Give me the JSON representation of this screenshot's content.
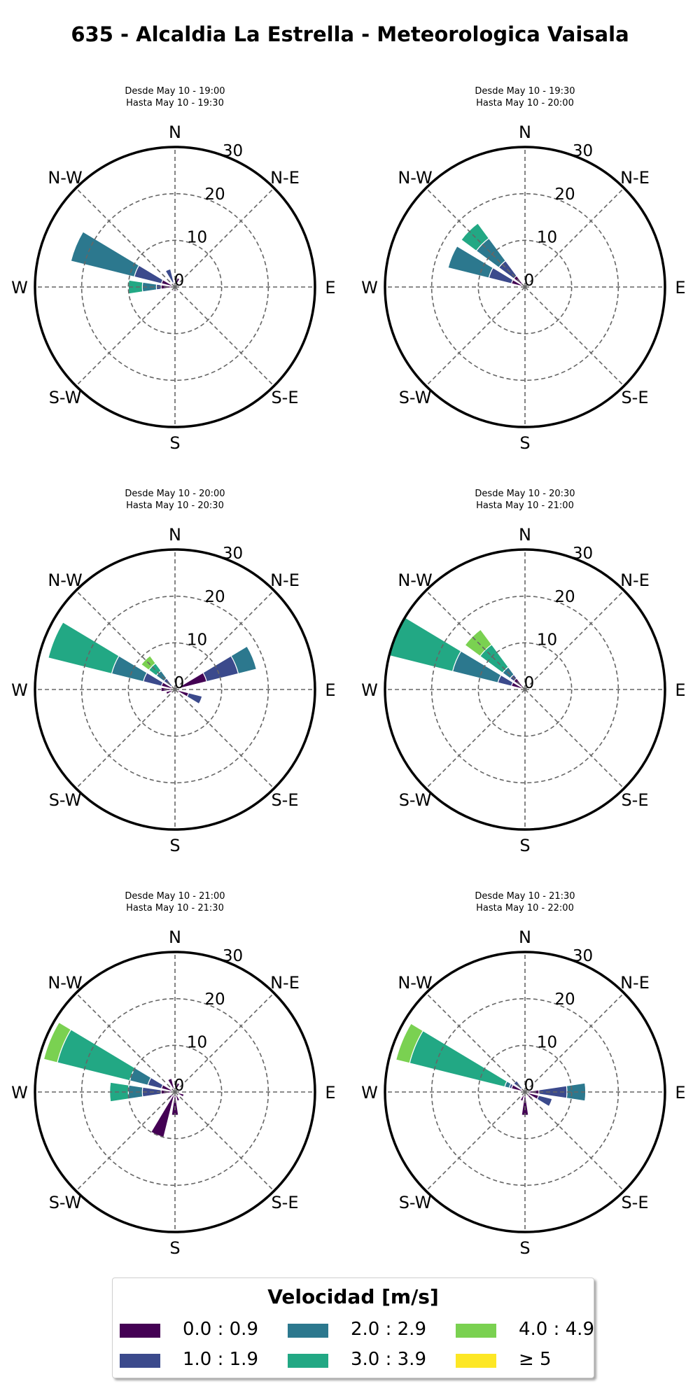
{
  "page": {
    "title": "635 - Alcaldia La Estrella - Meteorologica Vaisala"
  },
  "legend": {
    "title": "Velocidad [m/s]",
    "items": [
      {
        "label": "0.0 : 0.9",
        "color": "#440154"
      },
      {
        "label": "1.0 : 1.9",
        "color": "#3b4a8c"
      },
      {
        "label": "2.0 : 2.9",
        "color": "#2c788e"
      },
      {
        "label": "3.0 : 3.9",
        "color": "#22a884"
      },
      {
        "label": "4.0 : 4.9",
        "color": "#7ad151"
      },
      {
        "label": "≥ 5",
        "color": "#fde725"
      }
    ]
  },
  "chart_data": [
    {
      "type": "windrose",
      "subtitle": [
        "Desde May 10 - 19:00",
        "Hasta May 10 - 19:30"
      ],
      "directions": [
        "N",
        "N-E",
        "E",
        "S-E",
        "S",
        "S-W",
        "W",
        "N-W"
      ],
      "radial_ticks": [
        0,
        10,
        20,
        30
      ],
      "rmax": 30,
      "bars": [
        {
          "dir": 292.5,
          "stacks": [
            3,
            6,
            14
          ]
        },
        {
          "dir": 270,
          "stacks": [
            3,
            1,
            3,
            3
          ]
        },
        {
          "dir": 337.5,
          "stacks": [
            1,
            3
          ]
        },
        {
          "dir": 22.5,
          "stacks": [
            2
          ]
        },
        {
          "dir": 0,
          "stacks": [
            1
          ]
        },
        {
          "dir": 202.5,
          "stacks": [
            1
          ]
        },
        {
          "dir": 157.5,
          "stacks": [
            1
          ]
        }
      ]
    },
    {
      "type": "windrose",
      "subtitle": [
        "Desde May 10 - 19:30",
        "Hasta May 10 - 20:00"
      ],
      "directions": [
        "N",
        "N-E",
        "E",
        "S-E",
        "S",
        "S-W",
        "W",
        "N-W"
      ],
      "radial_ticks": [
        0,
        10,
        20,
        30
      ],
      "rmax": 30,
      "bars": [
        {
          "dir": 292.5,
          "stacks": [
            3,
            5,
            9
          ]
        },
        {
          "dir": 315,
          "stacks": [
            3,
            4,
            6,
            4
          ]
        }
      ]
    },
    {
      "type": "windrose",
      "subtitle": [
        "Desde May 10 - 20:00",
        "Hasta May 10 - 20:30"
      ],
      "directions": [
        "N",
        "N-E",
        "E",
        "S-E",
        "S",
        "S-W",
        "W",
        "N-W"
      ],
      "radial_ticks": [
        0,
        10,
        20,
        30
      ],
      "rmax": 30,
      "bars": [
        {
          "dir": 292.5,
          "stacks": [
            3,
            4,
            7,
            14
          ]
        },
        {
          "dir": 315,
          "stacks": [
            1,
            2,
            2,
            2,
            2
          ]
        },
        {
          "dir": 67.5,
          "stacks": [
            7,
            7,
            4
          ]
        },
        {
          "dir": 112.5,
          "stacks": [
            3,
            3
          ]
        },
        {
          "dir": 270,
          "stacks": [
            3
          ]
        },
        {
          "dir": 247.5,
          "stacks": [
            2
          ]
        }
      ]
    },
    {
      "type": "windrose",
      "subtitle": [
        "Desde May 10 - 20:30",
        "Hasta May 10 - 21:00"
      ],
      "directions": [
        "N",
        "N-E",
        "E",
        "S-E",
        "S",
        "S-W",
        "W",
        "N-W"
      ],
      "radial_ticks": [
        0,
        10,
        20,
        30
      ],
      "rmax": 30,
      "bars": [
        {
          "dir": 292.5,
          "stacks": [
            3,
            3,
            10,
            14
          ]
        },
        {
          "dir": 315,
          "stacks": [
            3,
            1,
            2,
            6,
            4
          ]
        }
      ]
    },
    {
      "type": "windrose",
      "subtitle": [
        "Desde May 10 - 21:00",
        "Hasta May 10 - 21:30"
      ],
      "directions": [
        "N",
        "N-E",
        "E",
        "S-E",
        "S",
        "S-W",
        "W",
        "N-W"
      ],
      "radial_ticks": [
        0,
        10,
        20,
        30
      ],
      "rmax": 30,
      "bars": [
        {
          "dir": 292.5,
          "stacks": [
            3,
            3,
            4,
            16,
            3
          ]
        },
        {
          "dir": 270,
          "stacks": [
            3,
            4,
            3,
            4
          ]
        },
        {
          "dir": 202.5,
          "stacks": [
            10
          ]
        },
        {
          "dir": 180,
          "stacks": [
            5
          ]
        },
        {
          "dir": 337.5,
          "stacks": [
            3
          ]
        },
        {
          "dir": 22.5,
          "stacks": [
            2
          ]
        },
        {
          "dir": 112.5,
          "stacks": [
            2
          ]
        },
        {
          "dir": 225,
          "stacks": [
            2
          ]
        },
        {
          "dir": 157.5,
          "stacks": [
            2
          ]
        },
        {
          "dir": 67.5,
          "stacks": [
            1
          ]
        }
      ]
    },
    {
      "type": "windrose",
      "subtitle": [
        "Desde May 10 - 21:30",
        "Hasta May 10 - 22:00"
      ],
      "directions": [
        "N",
        "N-E",
        "E",
        "S-E",
        "S",
        "S-W",
        "W",
        "N-W"
      ],
      "radial_ticks": [
        0,
        10,
        20,
        30
      ],
      "rmax": 30,
      "bars": [
        {
          "dir": 292.5,
          "stacks": [
            3,
            0.5,
            1,
            21,
            3
          ]
        },
        {
          "dir": 90,
          "stacks": [
            3,
            6,
            4
          ]
        },
        {
          "dir": 112.5,
          "stacks": [
            3,
            3
          ]
        },
        {
          "dir": 180,
          "stacks": [
            5
          ]
        },
        {
          "dir": 315,
          "stacks": [
            1,
            2
          ]
        },
        {
          "dir": 202.5,
          "stacks": [
            2
          ]
        },
        {
          "dir": 135,
          "stacks": [
            2
          ]
        }
      ]
    }
  ]
}
